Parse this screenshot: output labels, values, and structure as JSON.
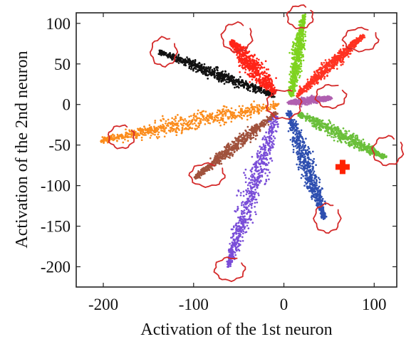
{
  "chart_data": {
    "type": "scatter",
    "xlabel": "Activation of the 1st neuron",
    "ylabel": "Activation of the 2nd neuron",
    "xlim": [
      -230,
      125
    ],
    "ylim": [
      -225,
      113
    ],
    "xticks": [
      -200,
      -100,
      0,
      100
    ],
    "yticks": [
      100,
      50,
      0,
      -50,
      -100,
      -150,
      -200
    ],
    "grid": false,
    "legend": "none",
    "series": [
      {
        "color": "#7ed320",
        "center_start": [
          8,
          10
        ],
        "center_end": [
          22,
          110
        ],
        "spread": 5
      },
      {
        "color": "#ff2418",
        "center_start": [
          -10,
          12
        ],
        "center_end": [
          -58,
          78
        ],
        "spread": 9
      },
      {
        "color": "#ff3322",
        "center_start": [
          15,
          12
        ],
        "center_end": [
          88,
          85
        ],
        "spread": 5
      },
      {
        "color": "#111111",
        "center_start": [
          -10,
          10
        ],
        "center_end": [
          -138,
          65
        ],
        "spread": 5
      },
      {
        "color": "#b060b0",
        "center_start": [
          5,
          2
        ],
        "center_end": [
          52,
          8
        ],
        "spread": 3
      },
      {
        "color": "#fb8c1c",
        "center_start": [
          -5,
          0
        ],
        "center_end": [
          -202,
          -45
        ],
        "spread": 9
      },
      {
        "color": "#6abf3a",
        "center_start": [
          15,
          -10
        ],
        "center_end": [
          112,
          -65
        ],
        "spread": 6
      },
      {
        "color": "#a0523d",
        "center_start": [
          -8,
          -10
        ],
        "center_end": [
          -98,
          -90
        ],
        "spread": 5
      },
      {
        "color": "#2e4fb0",
        "center_start": [
          5,
          -8
        ],
        "center_end": [
          45,
          -140
        ],
        "spread": 7
      },
      {
        "color": "#7a4ed8",
        "center_start": [
          -8,
          -15
        ],
        "center_end": [
          -62,
          -200
        ],
        "spread": 9
      }
    ],
    "highlight_point": {
      "x": 65,
      "y": -77,
      "color": "#ff2200",
      "marker": "cross"
    }
  },
  "annotations": {
    "color": "#d42a2a",
    "circles": [
      {
        "x": 18,
        "y": 108
      },
      {
        "x": -52,
        "y": 83
      },
      {
        "x": 85,
        "y": 80
      },
      {
        "x": -133,
        "y": 65
      },
      {
        "x": 52,
        "y": 10
      },
      {
        "x": 0,
        "y": 0
      },
      {
        "x": -180,
        "y": -40
      },
      {
        "x": 115,
        "y": -57
      },
      {
        "x": -85,
        "y": -87
      },
      {
        "x": 48,
        "y": -140
      },
      {
        "x": -60,
        "y": -203
      }
    ]
  }
}
